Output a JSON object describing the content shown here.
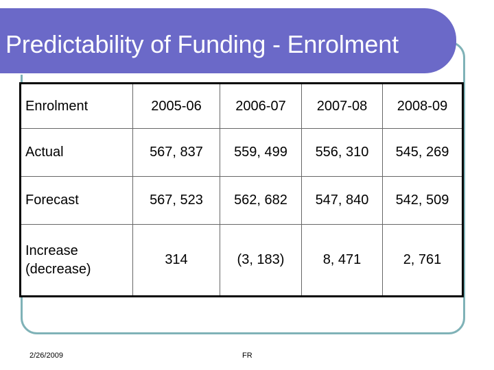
{
  "slide": {
    "title": "Predictability of Funding - Enrolment",
    "footer_date": "2/26/2009",
    "footer_text": "FR"
  },
  "table": {
    "header": [
      "Enrolment",
      "2005-06",
      "2006-07",
      "2007-08",
      "2008-09"
    ],
    "rows": [
      {
        "label": "Actual",
        "values": [
          "567, 837",
          "559, 499",
          "556, 310",
          "545, 269"
        ]
      },
      {
        "label": "Forecast",
        "values": [
          "567, 523",
          "562, 682",
          "547, 840",
          "542, 509"
        ]
      },
      {
        "label_line1": "Increase",
        "label_line2": "(decrease)",
        "values": [
          "314",
          "(3, 183)",
          "8, 471",
          "2, 761"
        ]
      }
    ]
  },
  "colors": {
    "title_bar": "#6b69c8",
    "frame_border": "#7fb2b7",
    "title_text": "#ffffff"
  }
}
